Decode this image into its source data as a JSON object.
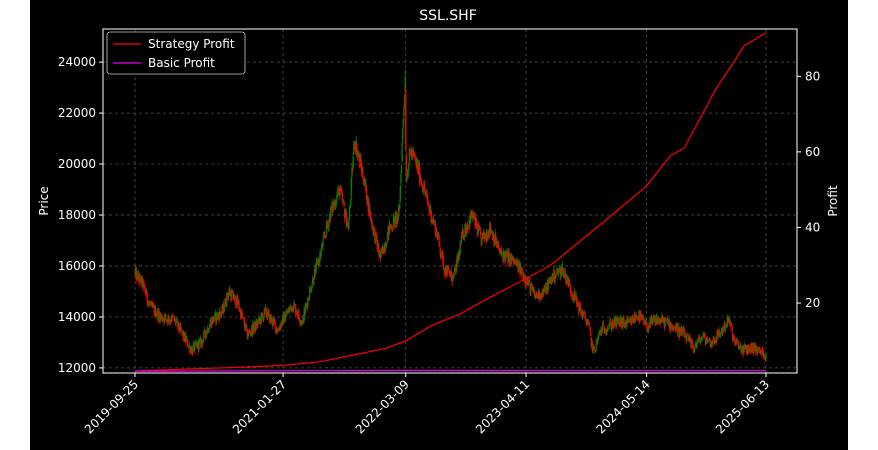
{
  "chart_data": {
    "type": "candlestick+line",
    "title": "SSL.SHF",
    "left_axis": {
      "label": "Price",
      "ylim": [
        11800,
        25300
      ],
      "ticks": [
        12000,
        14000,
        16000,
        18000,
        20000,
        22000,
        24000
      ],
      "tick_labels": [
        "12000",
        "14000",
        "16000",
        "18000",
        "20000",
        "22000",
        "24000"
      ]
    },
    "right_axis": {
      "label": "Profit",
      "ylim": [
        1.5,
        92.5
      ],
      "ticks": [
        20,
        40,
        60,
        80
      ],
      "tick_labels": [
        "20",
        "40",
        "60",
        "80"
      ]
    },
    "x_axis": {
      "range": [
        "2019-09-25",
        "2025-06-13"
      ],
      "ticks": [
        "2019-09-25",
        "2021-01-27",
        "2022-03-09",
        "2023-04-11",
        "2024-05-14",
        "2025-06-13"
      ],
      "tick_rotation": 45
    },
    "grid": true,
    "legend": {
      "placement": "top-left"
    },
    "colors": {
      "background": "#000000",
      "axes": "#ffffff",
      "up": "#008000",
      "down": "#ff0000",
      "strategy": "#ff0000",
      "basic": "#ee00ee"
    },
    "price_path": [
      [
        "2019-09-25",
        15700
      ],
      [
        "2019-10-20",
        15300
      ],
      [
        "2019-11-15",
        14400
      ],
      [
        "2019-12-20",
        14000
      ],
      [
        "2020-02-01",
        13900
      ],
      [
        "2020-03-05",
        13200
      ],
      [
        "2020-04-01",
        12700
      ],
      [
        "2020-05-01",
        13000
      ],
      [
        "2020-06-01",
        13800
      ],
      [
        "2020-07-10",
        14200
      ],
      [
        "2020-08-01",
        15000
      ],
      [
        "2020-09-01",
        14500
      ],
      [
        "2020-10-01",
        13300
      ],
      [
        "2020-11-01",
        13700
      ],
      [
        "2020-12-01",
        14200
      ],
      [
        "2021-01-10",
        13500
      ],
      [
        "2021-02-01",
        14000
      ],
      [
        "2021-03-01",
        14500
      ],
      [
        "2021-04-01",
        13800
      ],
      [
        "2021-05-01",
        15300
      ],
      [
        "2021-06-01",
        16500
      ],
      [
        "2021-07-01",
        18000
      ],
      [
        "2021-08-01",
        19000
      ],
      [
        "2021-09-01",
        17500
      ],
      [
        "2021-09-20",
        21000
      ],
      [
        "2021-10-20",
        19500
      ],
      [
        "2021-11-15",
        17800
      ],
      [
        "2021-12-15",
        16300
      ],
      [
        "2022-01-15",
        17500
      ],
      [
        "2022-02-15",
        18000
      ],
      [
        "2022-03-07",
        23500
      ],
      [
        "2022-03-10",
        19500
      ],
      [
        "2022-03-25",
        20500
      ],
      [
        "2022-04-20",
        19800
      ],
      [
        "2022-05-20",
        18500
      ],
      [
        "2022-06-20",
        17300
      ],
      [
        "2022-07-15",
        15900
      ],
      [
        "2022-08-15",
        15500
      ],
      [
        "2022-09-15",
        17300
      ],
      [
        "2022-10-15",
        18000
      ],
      [
        "2022-11-15",
        17000
      ],
      [
        "2022-12-15",
        17500
      ],
      [
        "2023-01-15",
        16500
      ],
      [
        "2023-02-15",
        16300
      ],
      [
        "2023-03-15",
        16000
      ],
      [
        "2023-04-11",
        15500
      ],
      [
        "2023-05-10",
        14800
      ],
      [
        "2023-06-10",
        15000
      ],
      [
        "2023-07-10",
        15600
      ],
      [
        "2023-08-10",
        15900
      ],
      [
        "2023-09-10",
        15000
      ],
      [
        "2023-10-10",
        14200
      ],
      [
        "2023-11-01",
        13800
      ],
      [
        "2023-11-20",
        12600
      ],
      [
        "2023-12-15",
        13500
      ],
      [
        "2024-01-15",
        13700
      ],
      [
        "2024-02-15",
        13800
      ],
      [
        "2024-03-15",
        13700
      ],
      [
        "2024-04-15",
        14100
      ],
      [
        "2024-05-14",
        13600
      ],
      [
        "2024-06-15",
        13900
      ],
      [
        "2024-07-15",
        13800
      ],
      [
        "2024-08-15",
        13600
      ],
      [
        "2024-09-15",
        13300
      ],
      [
        "2024-10-15",
        12800
      ],
      [
        "2024-11-15",
        13200
      ],
      [
        "2024-12-15",
        13000
      ],
      [
        "2025-01-15",
        13400
      ],
      [
        "2025-02-10",
        13900
      ],
      [
        "2025-03-01",
        13000
      ],
      [
        "2025-04-01",
        12700
      ],
      [
        "2025-05-01",
        12800
      ],
      [
        "2025-06-13",
        12500
      ]
    ],
    "series": [
      {
        "name": "Strategy Profit",
        "axis": "right",
        "points": [
          [
            "2019-09-25",
            2.0
          ],
          [
            "2020-03-01",
            2.5
          ],
          [
            "2020-09-01",
            3.0
          ],
          [
            "2021-01-27",
            3.5
          ],
          [
            "2021-06-01",
            4.5
          ],
          [
            "2021-10-01",
            6.5
          ],
          [
            "2022-01-01",
            8.0
          ],
          [
            "2022-03-09",
            10.0
          ],
          [
            "2022-06-01",
            14.0
          ],
          [
            "2022-09-01",
            17.0
          ],
          [
            "2022-12-01",
            21.0
          ],
          [
            "2023-04-11",
            26.5
          ],
          [
            "2023-07-01",
            30.0
          ],
          [
            "2023-10-01",
            36.0
          ],
          [
            "2024-01-01",
            42.0
          ],
          [
            "2024-05-14",
            51.0
          ],
          [
            "2024-08-01",
            59.0
          ],
          [
            "2024-09-15",
            61.0
          ],
          [
            "2024-11-01",
            68.0
          ],
          [
            "2025-01-01",
            77.0
          ],
          [
            "2025-03-01",
            84.0
          ],
          [
            "2025-04-01",
            88.0
          ],
          [
            "2025-06-13",
            91.5
          ]
        ]
      },
      {
        "name": "Basic Profit",
        "axis": "right",
        "points": [
          [
            "2019-09-25",
            2.0
          ],
          [
            "2021-06-01",
            2.1
          ],
          [
            "2022-03-09",
            2.2
          ],
          [
            "2023-06-01",
            2.1
          ],
          [
            "2025-06-13",
            2.1
          ]
        ]
      }
    ]
  }
}
